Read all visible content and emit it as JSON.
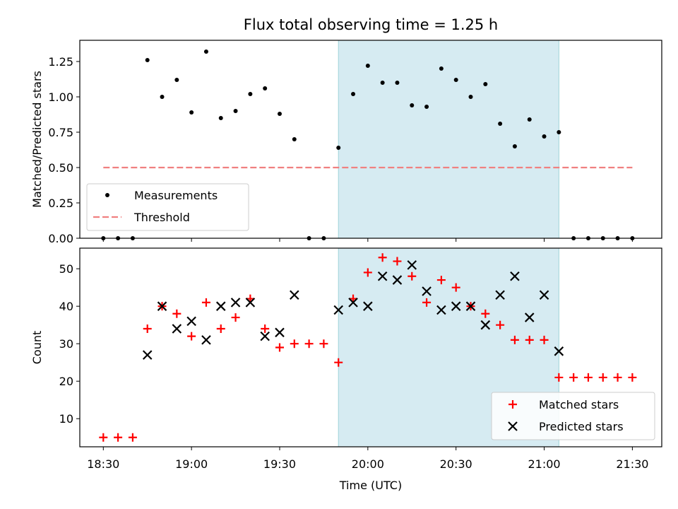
{
  "title": "Flux total observing time = 1.25 h",
  "colors": {
    "shade": "#add8e6",
    "threshold": "#f08080",
    "matched": "#ff0000",
    "predicted": "#000000",
    "points": "#000000"
  },
  "chart_data": [
    {
      "type": "scatter",
      "title": "Flux total observing time = 1.25 h",
      "xlabel": "",
      "ylabel": "Matched/Predicted stars",
      "xlim_minutes_utc": [
        1102,
        1300
      ],
      "ylim": [
        0,
        1.4
      ],
      "yticks": [
        0.0,
        0.25,
        0.5,
        0.75,
        1.0,
        1.25
      ],
      "ytick_labels": [
        "0.00",
        "0.25",
        "0.50",
        "0.75",
        "1.00",
        "1.25"
      ],
      "shaded_interval_utc": [
        "19:50",
        "21:05"
      ],
      "legend": {
        "location": "lower-left",
        "entries": [
          "Measurements",
          "Threshold"
        ]
      },
      "series": [
        {
          "name": "Measurements",
          "marker": "dot",
          "x": [
            "18:30",
            "18:35",
            "18:40",
            "18:45",
            "18:50",
            "18:55",
            "19:00",
            "19:05",
            "19:10",
            "19:15",
            "19:20",
            "19:25",
            "19:30",
            "19:35",
            "19:40",
            "19:45",
            "19:50",
            "19:55",
            "20:00",
            "20:05",
            "20:10",
            "20:15",
            "20:20",
            "20:25",
            "20:30",
            "20:35",
            "20:40",
            "20:45",
            "20:50",
            "20:55",
            "21:00",
            "21:05",
            "21:10",
            "21:15",
            "21:20",
            "21:25",
            "21:30"
          ],
          "values": [
            0,
            0,
            0,
            1.26,
            1.0,
            1.12,
            0.89,
            1.32,
            0.85,
            0.9,
            1.02,
            1.06,
            0.88,
            0.7,
            0,
            0,
            0.64,
            1.02,
            1.22,
            1.1,
            1.1,
            0.94,
            0.93,
            1.2,
            1.12,
            1.0,
            1.09,
            0.81,
            0.65,
            0.84,
            0.72,
            0.75,
            0,
            0,
            0,
            0,
            0
          ]
        },
        {
          "name": "Threshold",
          "style": "dashed",
          "x": [
            "18:30",
            "21:30"
          ],
          "values": [
            0.5,
            0.5
          ]
        }
      ]
    },
    {
      "type": "scatter",
      "title": "",
      "xlabel": "Time (UTC)",
      "ylabel": "Count",
      "xlim_minutes_utc": [
        1102,
        1300
      ],
      "ylim": [
        2.5,
        55.5
      ],
      "yticks": [
        10,
        20,
        30,
        40,
        50
      ],
      "ytick_labels": [
        "10",
        "20",
        "30",
        "40",
        "50"
      ],
      "xticks": [
        "18:30",
        "19:00",
        "19:30",
        "20:00",
        "20:30",
        "21:00",
        "21:30"
      ],
      "shaded_interval_utc": [
        "19:50",
        "21:05"
      ],
      "legend": {
        "location": "lower-right",
        "entries": [
          "Matched stars",
          "Predicted stars"
        ]
      },
      "series": [
        {
          "name": "Matched stars",
          "marker": "plus",
          "x": [
            "18:30",
            "18:35",
            "18:40",
            "18:45",
            "18:50",
            "18:55",
            "19:00",
            "19:05",
            "19:10",
            "19:15",
            "19:20",
            "19:25",
            "19:30",
            "19:35",
            "19:40",
            "19:45",
            "19:50",
            "19:55",
            "20:00",
            "20:05",
            "20:10",
            "20:15",
            "20:20",
            "20:25",
            "20:30",
            "20:35",
            "20:40",
            "20:45",
            "20:50",
            "20:55",
            "21:00",
            "21:05",
            "21:10",
            "21:15",
            "21:20",
            "21:25",
            "21:30"
          ],
          "values": [
            5,
            5,
            5,
            34,
            40,
            38,
            32,
            41,
            34,
            37,
            42,
            34,
            29,
            30,
            30,
            30,
            25,
            42,
            49,
            53,
            52,
            48,
            41,
            47,
            45,
            40,
            38,
            35,
            31,
            31,
            31,
            21,
            21,
            21,
            21,
            21,
            21
          ]
        },
        {
          "name": "Predicted stars",
          "marker": "x",
          "x": [
            "18:45",
            "18:50",
            "18:55",
            "19:00",
            "19:05",
            "19:10",
            "19:15",
            "19:20",
            "19:25",
            "19:30",
            "19:35",
            "19:50",
            "19:55",
            "20:00",
            "20:05",
            "20:10",
            "20:15",
            "20:20",
            "20:25",
            "20:30",
            "20:35",
            "20:40",
            "20:45",
            "20:50",
            "20:55",
            "21:00",
            "21:05"
          ],
          "values": [
            27,
            40,
            34,
            36,
            31,
            40,
            41,
            41,
            32,
            33,
            43,
            39,
            41,
            40,
            48,
            47,
            51,
            44,
            39,
            40,
            40,
            35,
            43,
            48,
            37,
            43,
            28
          ]
        }
      ]
    }
  ]
}
